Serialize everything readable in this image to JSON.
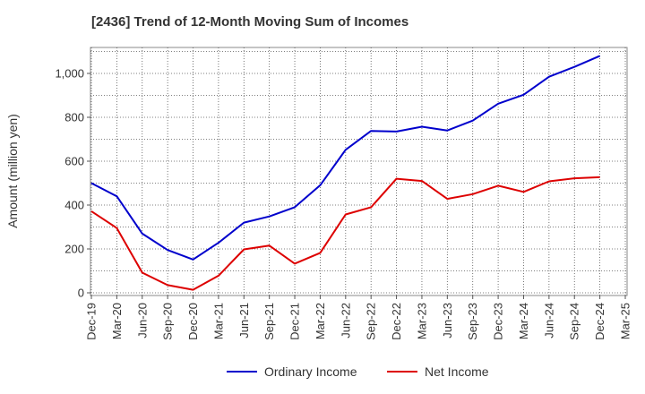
{
  "chart_data": {
    "type": "line",
    "title": "[2436]  Trend of 12-Month Moving Sum of Incomes",
    "xlabel": "",
    "ylabel": "Amount (million yen)",
    "ylim": [
      0,
      1110
    ],
    "yticks": [
      0,
      200,
      400,
      600,
      800,
      1000
    ],
    "ytick_labels": [
      "0",
      "200",
      "400",
      "600",
      "800",
      "1,000"
    ],
    "categories": [
      "Dec-19",
      "Mar-20",
      "Jun-20",
      "Sep-20",
      "Dec-20",
      "Mar-21",
      "Jun-21",
      "Sep-21",
      "Dec-21",
      "Mar-22",
      "Jun-22",
      "Sep-22",
      "Dec-22",
      "Mar-23",
      "Jun-23",
      "Sep-23",
      "Dec-23",
      "Mar-24",
      "Jun-24",
      "Sep-24",
      "Dec-24",
      "Mar-25"
    ],
    "series": [
      {
        "name": "Ordinary Income",
        "color": "#0000cc",
        "values": [
          500,
          440,
          270,
          195,
          152,
          228,
          320,
          348,
          390,
          490,
          652,
          738,
          735,
          757,
          740,
          785,
          862,
          903,
          985,
          1030,
          1080,
          null
        ]
      },
      {
        "name": "Net Income",
        "color": "#dd0000",
        "values": [
          372,
          295,
          92,
          35,
          14,
          78,
          198,
          215,
          133,
          182,
          357,
          390,
          520,
          510,
          428,
          450,
          488,
          460,
          508,
          522,
          527,
          null
        ]
      }
    ],
    "grid": true,
    "legend": "bottom"
  }
}
